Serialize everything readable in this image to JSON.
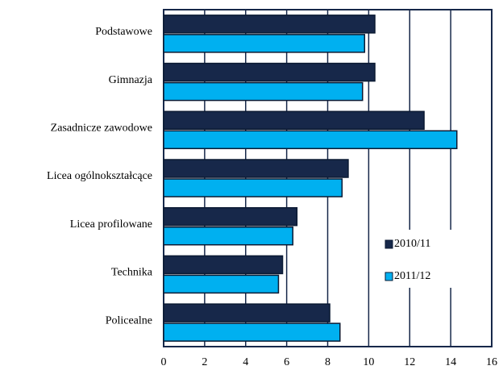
{
  "chart_data": {
    "type": "barh",
    "categories": [
      "Podstawowe",
      "Gimnazja",
      "Zasadnicze zawodowe",
      "Licea ogólnokształcące",
      "Licea profilowane",
      "Technika",
      "Policealne"
    ],
    "series": [
      {
        "name": "2010/11",
        "color": "#17284a",
        "values": [
          10.3,
          10.3,
          12.7,
          9.0,
          6.5,
          5.8,
          8.1
        ]
      },
      {
        "name": "2011/12",
        "color": "#00b0f0",
        "values": [
          9.8,
          9.7,
          14.3,
          8.7,
          6.3,
          5.6,
          8.6
        ]
      }
    ],
    "xlim": [
      0,
      16
    ],
    "xticks": [
      0,
      2,
      4,
      6,
      8,
      10,
      12,
      14,
      16
    ],
    "grid": true,
    "legend": "right"
  }
}
